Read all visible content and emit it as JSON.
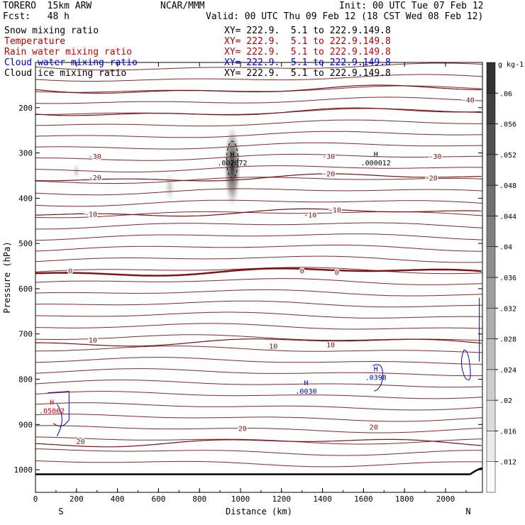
{
  "header": {
    "title": "TORERO  15km ARW",
    "center": "NCAR/MMM",
    "init": "Init: 00 UTC Tue 07 Feb 12",
    "fcst": "Fcst:   48 h",
    "valid": "Valid: 00 UTC Thu 09 Feb 12 (18 CST Wed 08 Feb 12)"
  },
  "legend": [
    {
      "name": "Snow mixing ratio",
      "xy": "XY= 222.9.  5.1 to 222.9.149.8",
      "color": "#000000"
    },
    {
      "name": "Temperature",
      "xy": "XY= 222.9.  5.1 to 222.9.149.8",
      "color": "#b00000"
    },
    {
      "name": "Rain water mixing ratio",
      "xy": "XY= 222.9.  5.1 to 222.9.149.8",
      "color": "#cc0000"
    },
    {
      "name": "Cloud water mixing ratio",
      "xy": "XY= 222.9.  5.1 to 222.9.149.8",
      "color": "#0000cc"
    },
    {
      "name": "Cloud ice mixing ratio",
      "xy": "XY= 222.9.  5.1 to 222.9.149.8",
      "color": "#000000"
    }
  ],
  "chart_data": {
    "type": "contour",
    "xlabel": "Distance (km)",
    "ylabel": "Pressure (hPa)",
    "xlim": [
      0,
      2180
    ],
    "ylim": [
      1050,
      100
    ],
    "x_ticks": [
      0,
      200,
      400,
      600,
      800,
      1000,
      1200,
      1400,
      1600,
      1800,
      2000
    ],
    "y_ticks": [
      200,
      300,
      400,
      500,
      600,
      700,
      800,
      900,
      1000
    ],
    "x_end_labels": {
      "left": "S",
      "right": "N"
    },
    "temperature_color": "#7a1010",
    "temperature_contours": [
      {
        "level": -40,
        "p": 160,
        "label": "-40",
        "label_at": [
          {
            "x": 2110,
            "p": 182
          }
        ]
      },
      {
        "level": -30,
        "p": 210,
        "label": "-30",
        "label_at": [
          {
            "x": 290,
            "p": 307
          },
          {
            "x": 1430,
            "p": 307
          },
          {
            "x": 1950,
            "p": 307
          }
        ]
      },
      {
        "level": -20,
        "p": 355,
        "label": "-20",
        "label_at": [
          {
            "x": 290,
            "p": 354
          },
          {
            "x": 1430,
            "p": 345
          },
          {
            "x": 1930,
            "p": 355
          }
        ]
      },
      {
        "level": -10,
        "p": 432,
        "label": "-10",
        "label_at": [
          {
            "x": 270,
            "p": 435
          },
          {
            "x": 1340,
            "p": 436
          },
          {
            "x": 1460,
            "p": 425
          }
        ]
      },
      {
        "level": 0,
        "p": 563,
        "label": "0",
        "label_at": [
          {
            "x": 170,
            "p": 560
          },
          {
            "x": 1300,
            "p": 560
          },
          {
            "x": 1470,
            "p": 563
          }
        ]
      },
      {
        "level": 10,
        "p": 718,
        "label": "10",
        "label_at": [
          {
            "x": 280,
            "p": 713
          },
          {
            "x": 1160,
            "p": 726
          },
          {
            "x": 1440,
            "p": 723
          }
        ]
      },
      {
        "level": 20,
        "p": 940,
        "label": "20",
        "label_at": [
          {
            "x": 220,
            "p": 937
          },
          {
            "x": 1010,
            "p": 908
          },
          {
            "x": 1650,
            "p": 905
          }
        ]
      }
    ],
    "snow_maxima": [
      {
        "label": "H",
        "value": ".002072",
        "x": 960,
        "p": 318
      },
      {
        "label": "H",
        "value": ".000012",
        "x": 1660,
        "p": 318
      }
    ],
    "cloud_water_maxima": [
      {
        "label": "H",
        "value": ".0030",
        "x": 1320,
        "p": 823
      },
      {
        "label": "H",
        "value": ".0398",
        "x": 1660,
        "p": 792
      }
    ],
    "rain_maxima": [
      {
        "label": "H",
        "value": ".05062",
        "x": 80,
        "p": 866
      }
    ],
    "shading_scale": {
      "unit": "g kg-1",
      "levels": [
        0.012,
        0.016,
        0.02,
        0.024,
        0.028,
        0.032,
        0.036,
        0.04,
        0.044,
        0.048,
        0.052,
        0.056,
        0.06
      ],
      "labels": [
        ".012",
        ".016",
        ".02",
        ".024",
        ".028",
        ".032",
        ".036",
        ".04",
        ".044",
        ".048",
        ".052",
        ".056",
        ".06"
      ]
    }
  }
}
